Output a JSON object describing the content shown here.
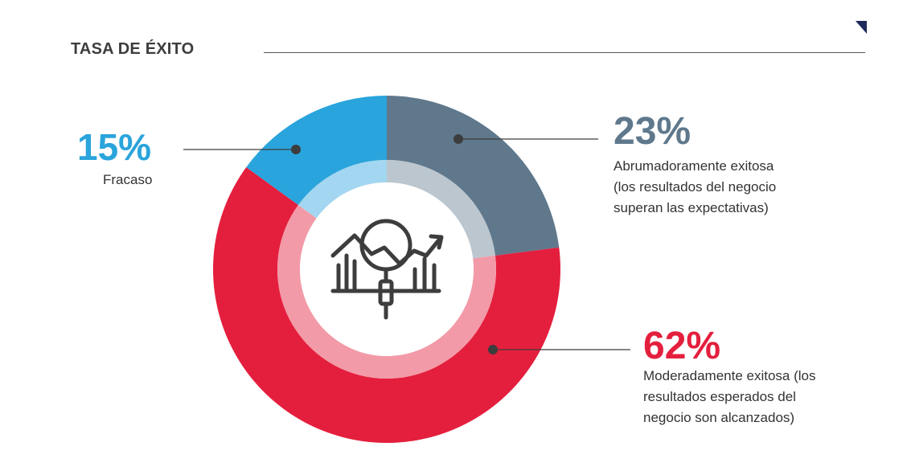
{
  "title": "TASA DE ÉXITO",
  "icon": "chart-magnifier-icon",
  "colors": {
    "fracaso": "#2aa4dc",
    "abrumadora": "#5f788c",
    "moderada": "#e41f3d",
    "fracaso_inner": "#a3d6f0",
    "abrumadora_inner": "#bcc6ce",
    "moderada_inner": "#f39aa8",
    "line": "#3d3d3d"
  },
  "chart_data": {
    "type": "pie",
    "title": "TASA DE ÉXITO",
    "series": [
      {
        "label": "Abrumadoramente exitosa (los resultados del negocio superan las expectativas)",
        "value": 23,
        "value_label": "23%"
      },
      {
        "label": "Moderadamente exitosa (los resultados esperados del negocio son alcanzados)",
        "value": 62,
        "value_label": "62%"
      },
      {
        "label": "Fracaso",
        "value": 15,
        "value_label": "15%"
      }
    ]
  },
  "labels": {
    "fracaso": {
      "pct": "15%",
      "lines": [
        "Fracaso"
      ]
    },
    "abrumadora": {
      "pct": "23%",
      "lines": [
        "Abrumadoramente exitosa",
        "(los resultados del negocio",
        "superan las expectativas)"
      ]
    },
    "moderada": {
      "pct": "62%",
      "lines": [
        "Moderadamente exitosa (los",
        "resultados esperados del",
        "negocio  son alcanzados)"
      ]
    }
  }
}
